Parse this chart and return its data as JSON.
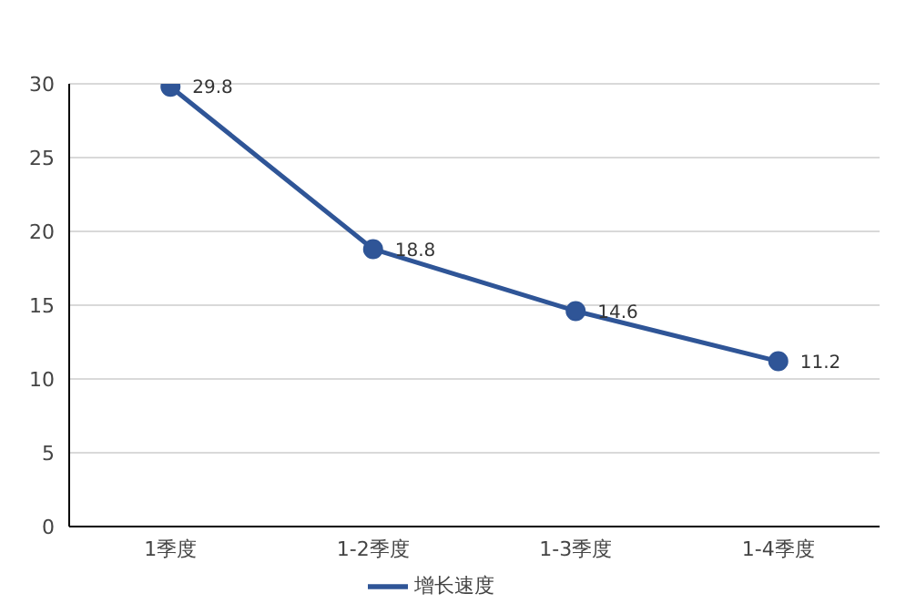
{
  "chart_data": {
    "type": "line",
    "categories": [
      "1季度",
      "1-2季度",
      "1-3季度",
      "1-4季度"
    ],
    "series": [
      {
        "name": "增长速度",
        "color": "#2f5597",
        "values": [
          29.8,
          18.8,
          14.6,
          11.2
        ]
      }
    ],
    "ylim": [
      0,
      30
    ],
    "yticks": [
      0,
      5,
      10,
      15,
      20,
      25,
      30
    ],
    "grid": "y",
    "legend": "bottom",
    "marker": "circle",
    "data_labels": true
  }
}
